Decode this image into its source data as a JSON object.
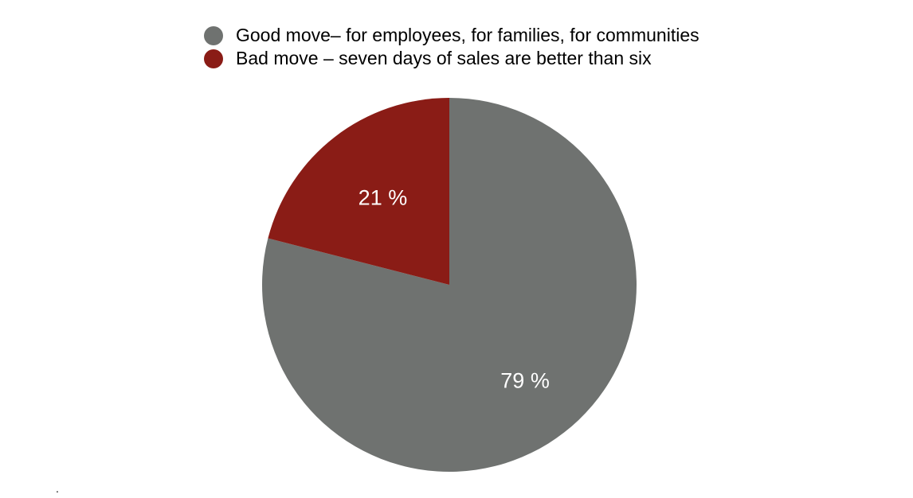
{
  "chart_data": {
    "type": "pie",
    "categories": [
      "Good move– for employees, for families, for communities",
      "Bad move – seven days of sales are better than six"
    ],
    "values": [
      79,
      21
    ],
    "data_labels": [
      "79 %",
      "21 %"
    ],
    "colors": [
      "#6f7270",
      "#8a1c16"
    ],
    "legend_position": "top"
  },
  "footnote": "."
}
